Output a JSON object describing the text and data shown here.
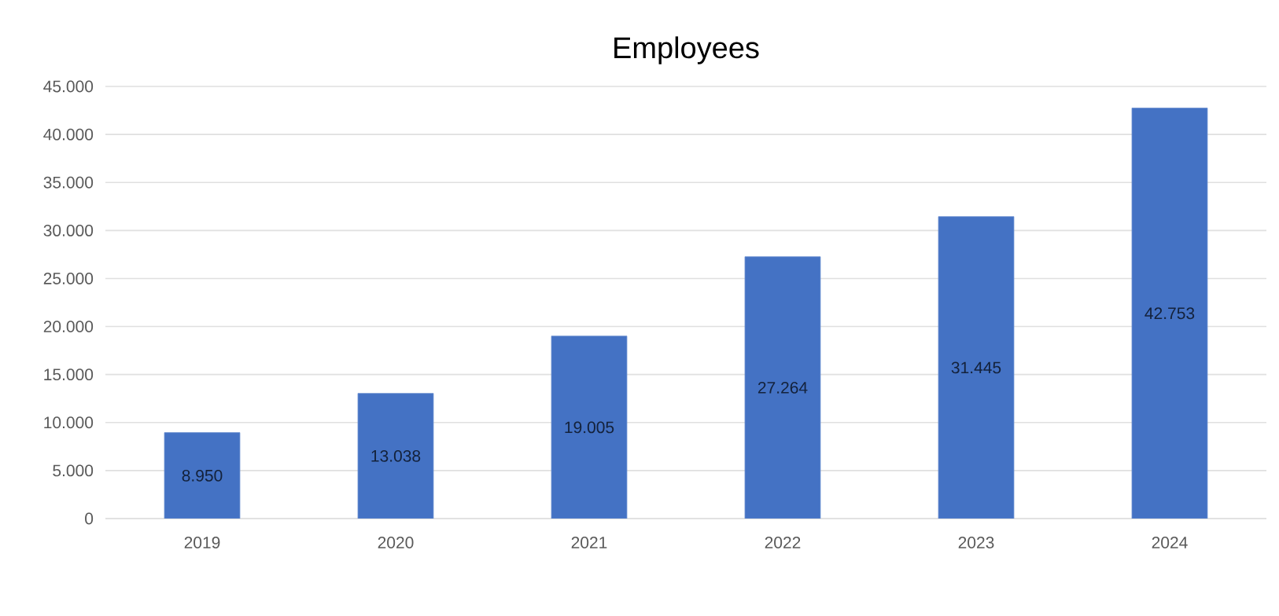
{
  "chart_data": {
    "type": "bar",
    "title": "Employees",
    "categories": [
      "2019",
      "2020",
      "2021",
      "2022",
      "2023",
      "2024"
    ],
    "values": [
      8950,
      13038,
      19005,
      27264,
      31445,
      42753
    ],
    "value_labels": [
      "8.950",
      "13.038",
      "19.005",
      "27.264",
      "31.445",
      "42.753"
    ],
    "color": "#4472c4",
    "ylim": [
      0,
      45000
    ],
    "yticks": [
      0,
      {
        "value": 5000,
        "label": "5.000"
      },
      {
        "value": 10000,
        "label": "10.000"
      },
      {
        "value": 15000,
        "label": "15.000"
      },
      {
        "value": 20000,
        "label": "20.000"
      },
      {
        "value": 25000,
        "label": "25.000"
      },
      {
        "value": 30000,
        "label": "30.000"
      },
      {
        "value": 35000,
        "label": "35.000"
      },
      {
        "value": 40000,
        "label": "40.000"
      },
      {
        "value": 45000,
        "label": "45.000"
      }
    ],
    "grid": "y"
  }
}
